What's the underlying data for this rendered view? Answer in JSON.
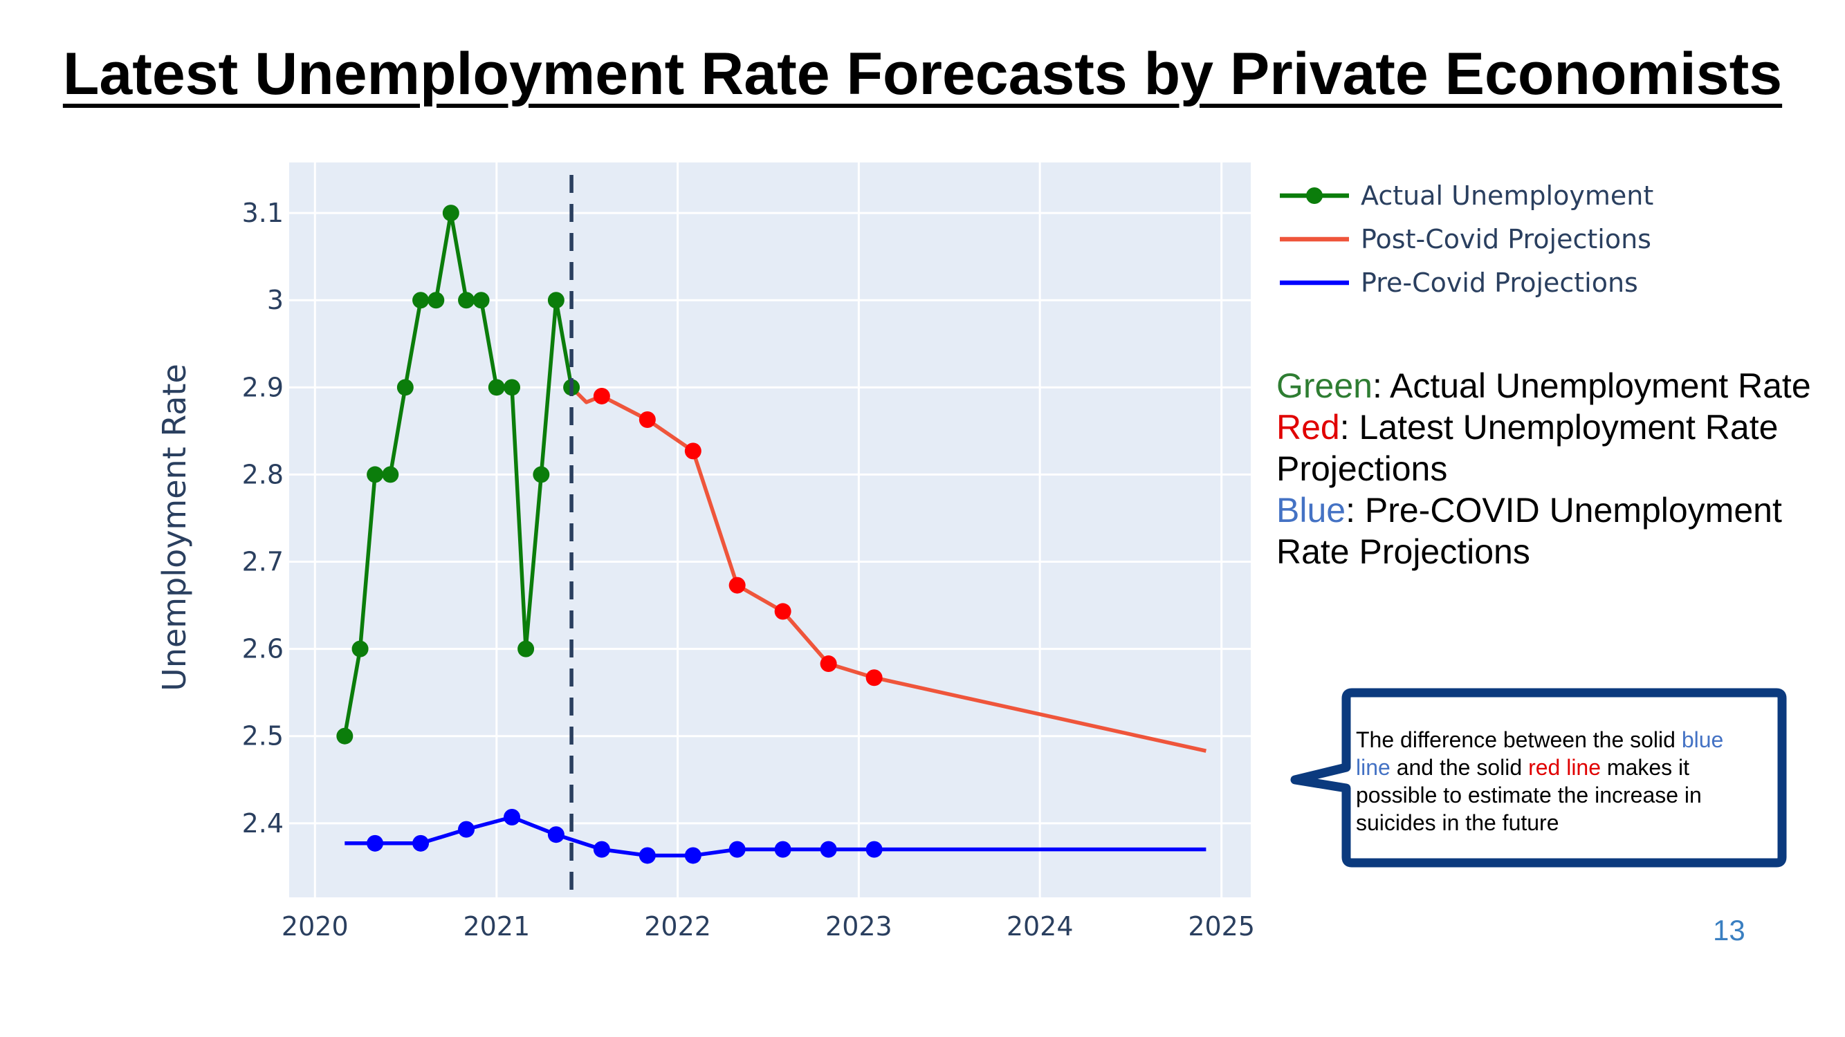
{
  "title": "Latest Unemployment Rate Forecasts by Private Economists",
  "colors": {
    "plot_bg": "#e5ecf6",
    "grid": "#ffffff",
    "axis_text": "#2a3f5f",
    "actual": "#0b7d0b",
    "post_covid_line": "#ef553b",
    "post_covid_marker": "#ff0000",
    "pre_covid": "#0000ff",
    "divider": "#2a3f5f",
    "note_green": "#2e7d32",
    "note_red": "#e00000",
    "note_blue": "#4472c4",
    "callout_border": "#0b3a7e"
  },
  "chart_data": {
    "type": "line",
    "ylabel": "Unemployment Rate",
    "xlabel": "",
    "xlim": [
      "2019-11-10",
      "2025-03-01"
    ],
    "ylim": [
      2.315,
      3.158
    ],
    "x_ticks": [
      "2020",
      "2021",
      "2022",
      "2023",
      "2024",
      "2025"
    ],
    "y_ticks": [
      "2.4",
      "2.5",
      "2.6",
      "2.7",
      "2.8",
      "2.9",
      "3",
      "3.1"
    ],
    "grid": true,
    "legend_position": "top-right (outside plot)",
    "vertical_divider_x": "2021-06-01",
    "series": [
      {
        "name": "Actual Unemployment",
        "mode": "lines+markers",
        "points": [
          [
            "2020-03-01",
            2.5
          ],
          [
            "2020-04-01",
            2.6
          ],
          [
            "2020-05-01",
            2.8
          ],
          [
            "2020-06-01",
            2.8
          ],
          [
            "2020-07-01",
            2.9
          ],
          [
            "2020-08-01",
            3.0
          ],
          [
            "2020-09-01",
            3.0
          ],
          [
            "2020-10-01",
            3.1
          ],
          [
            "2020-11-01",
            3.0
          ],
          [
            "2020-12-01",
            3.0
          ],
          [
            "2021-01-01",
            2.9
          ],
          [
            "2021-02-01",
            2.9
          ],
          [
            "2021-03-01",
            2.6
          ],
          [
            "2021-04-01",
            2.8
          ],
          [
            "2021-05-01",
            3.0
          ],
          [
            "2021-06-01",
            2.9
          ]
        ]
      },
      {
        "name": "Post-Covid Projections",
        "mode": "lines",
        "points": [
          [
            "2021-06-01",
            2.9
          ],
          [
            "2021-07-01",
            2.883
          ],
          [
            "2021-08-01",
            2.89
          ],
          [
            "2021-11-01",
            2.863
          ],
          [
            "2022-02-01",
            2.827
          ],
          [
            "2022-05-01",
            2.673
          ],
          [
            "2022-08-01",
            2.643
          ],
          [
            "2022-11-01",
            2.583
          ],
          [
            "2023-02-01",
            2.567
          ],
          [
            "2024-12-01",
            2.483
          ]
        ]
      },
      {
        "name": "Post-Covid Projections (markers)",
        "mode": "markers",
        "points": [
          [
            "2021-08-01",
            2.89
          ],
          [
            "2021-11-01",
            2.863
          ],
          [
            "2022-02-01",
            2.827
          ],
          [
            "2022-05-01",
            2.673
          ],
          [
            "2022-08-01",
            2.643
          ],
          [
            "2022-11-01",
            2.583
          ],
          [
            "2023-02-01",
            2.567
          ]
        ]
      },
      {
        "name": "Pre-Covid Projections",
        "mode": "lines",
        "points": [
          [
            "2020-03-01",
            2.377
          ],
          [
            "2020-05-01",
            2.377
          ],
          [
            "2020-08-01",
            2.377
          ],
          [
            "2020-11-01",
            2.393
          ],
          [
            "2021-02-01",
            2.407
          ],
          [
            "2021-05-01",
            2.387
          ],
          [
            "2021-08-01",
            2.37
          ],
          [
            "2021-11-01",
            2.363
          ],
          [
            "2022-02-01",
            2.363
          ],
          [
            "2022-05-01",
            2.37
          ],
          [
            "2022-08-01",
            2.37
          ],
          [
            "2022-11-01",
            2.37
          ],
          [
            "2023-02-01",
            2.37
          ],
          [
            "2024-12-01",
            2.37
          ]
        ]
      },
      {
        "name": "Pre-Covid Projections (markers)",
        "mode": "markers",
        "points": [
          [
            "2020-05-01",
            2.377
          ],
          [
            "2020-08-01",
            2.377
          ],
          [
            "2020-11-01",
            2.393
          ],
          [
            "2021-02-01",
            2.407
          ],
          [
            "2021-05-01",
            2.387
          ],
          [
            "2021-08-01",
            2.37
          ],
          [
            "2021-11-01",
            2.363
          ],
          [
            "2022-02-01",
            2.363
          ],
          [
            "2022-05-01",
            2.37
          ],
          [
            "2022-08-01",
            2.37
          ],
          [
            "2022-11-01",
            2.37
          ],
          [
            "2023-02-01",
            2.37
          ]
        ]
      }
    ],
    "legend": [
      {
        "label": "Actual Unemployment",
        "color": "#0b7d0b",
        "marker": true
      },
      {
        "label": "Post-Covid Projections",
        "color": "#ef553b",
        "marker": false
      },
      {
        "label": "Pre-Covid Projections",
        "color": "#0000ff",
        "marker": false
      }
    ]
  },
  "notes": [
    {
      "key": "Green",
      "sep": ":",
      "text": " Actual Unemployment Rate",
      "color_key": "note_green"
    },
    {
      "key": "Red",
      "sep": ":",
      "text": " Latest Unemployment Rate Projections",
      "color_key": "note_red"
    },
    {
      "key": "Blue",
      "sep": ":",
      "text": " Pre-COVID Unemployment Rate Projections",
      "color_key": "note_blue"
    }
  ],
  "callout": {
    "t1": "The difference between the solid ",
    "blue": "blue line",
    "t2": " and the solid ",
    "red": "red line",
    "t3": " makes it possible to estimate the increase in suicides in the future"
  },
  "page_number": "13"
}
